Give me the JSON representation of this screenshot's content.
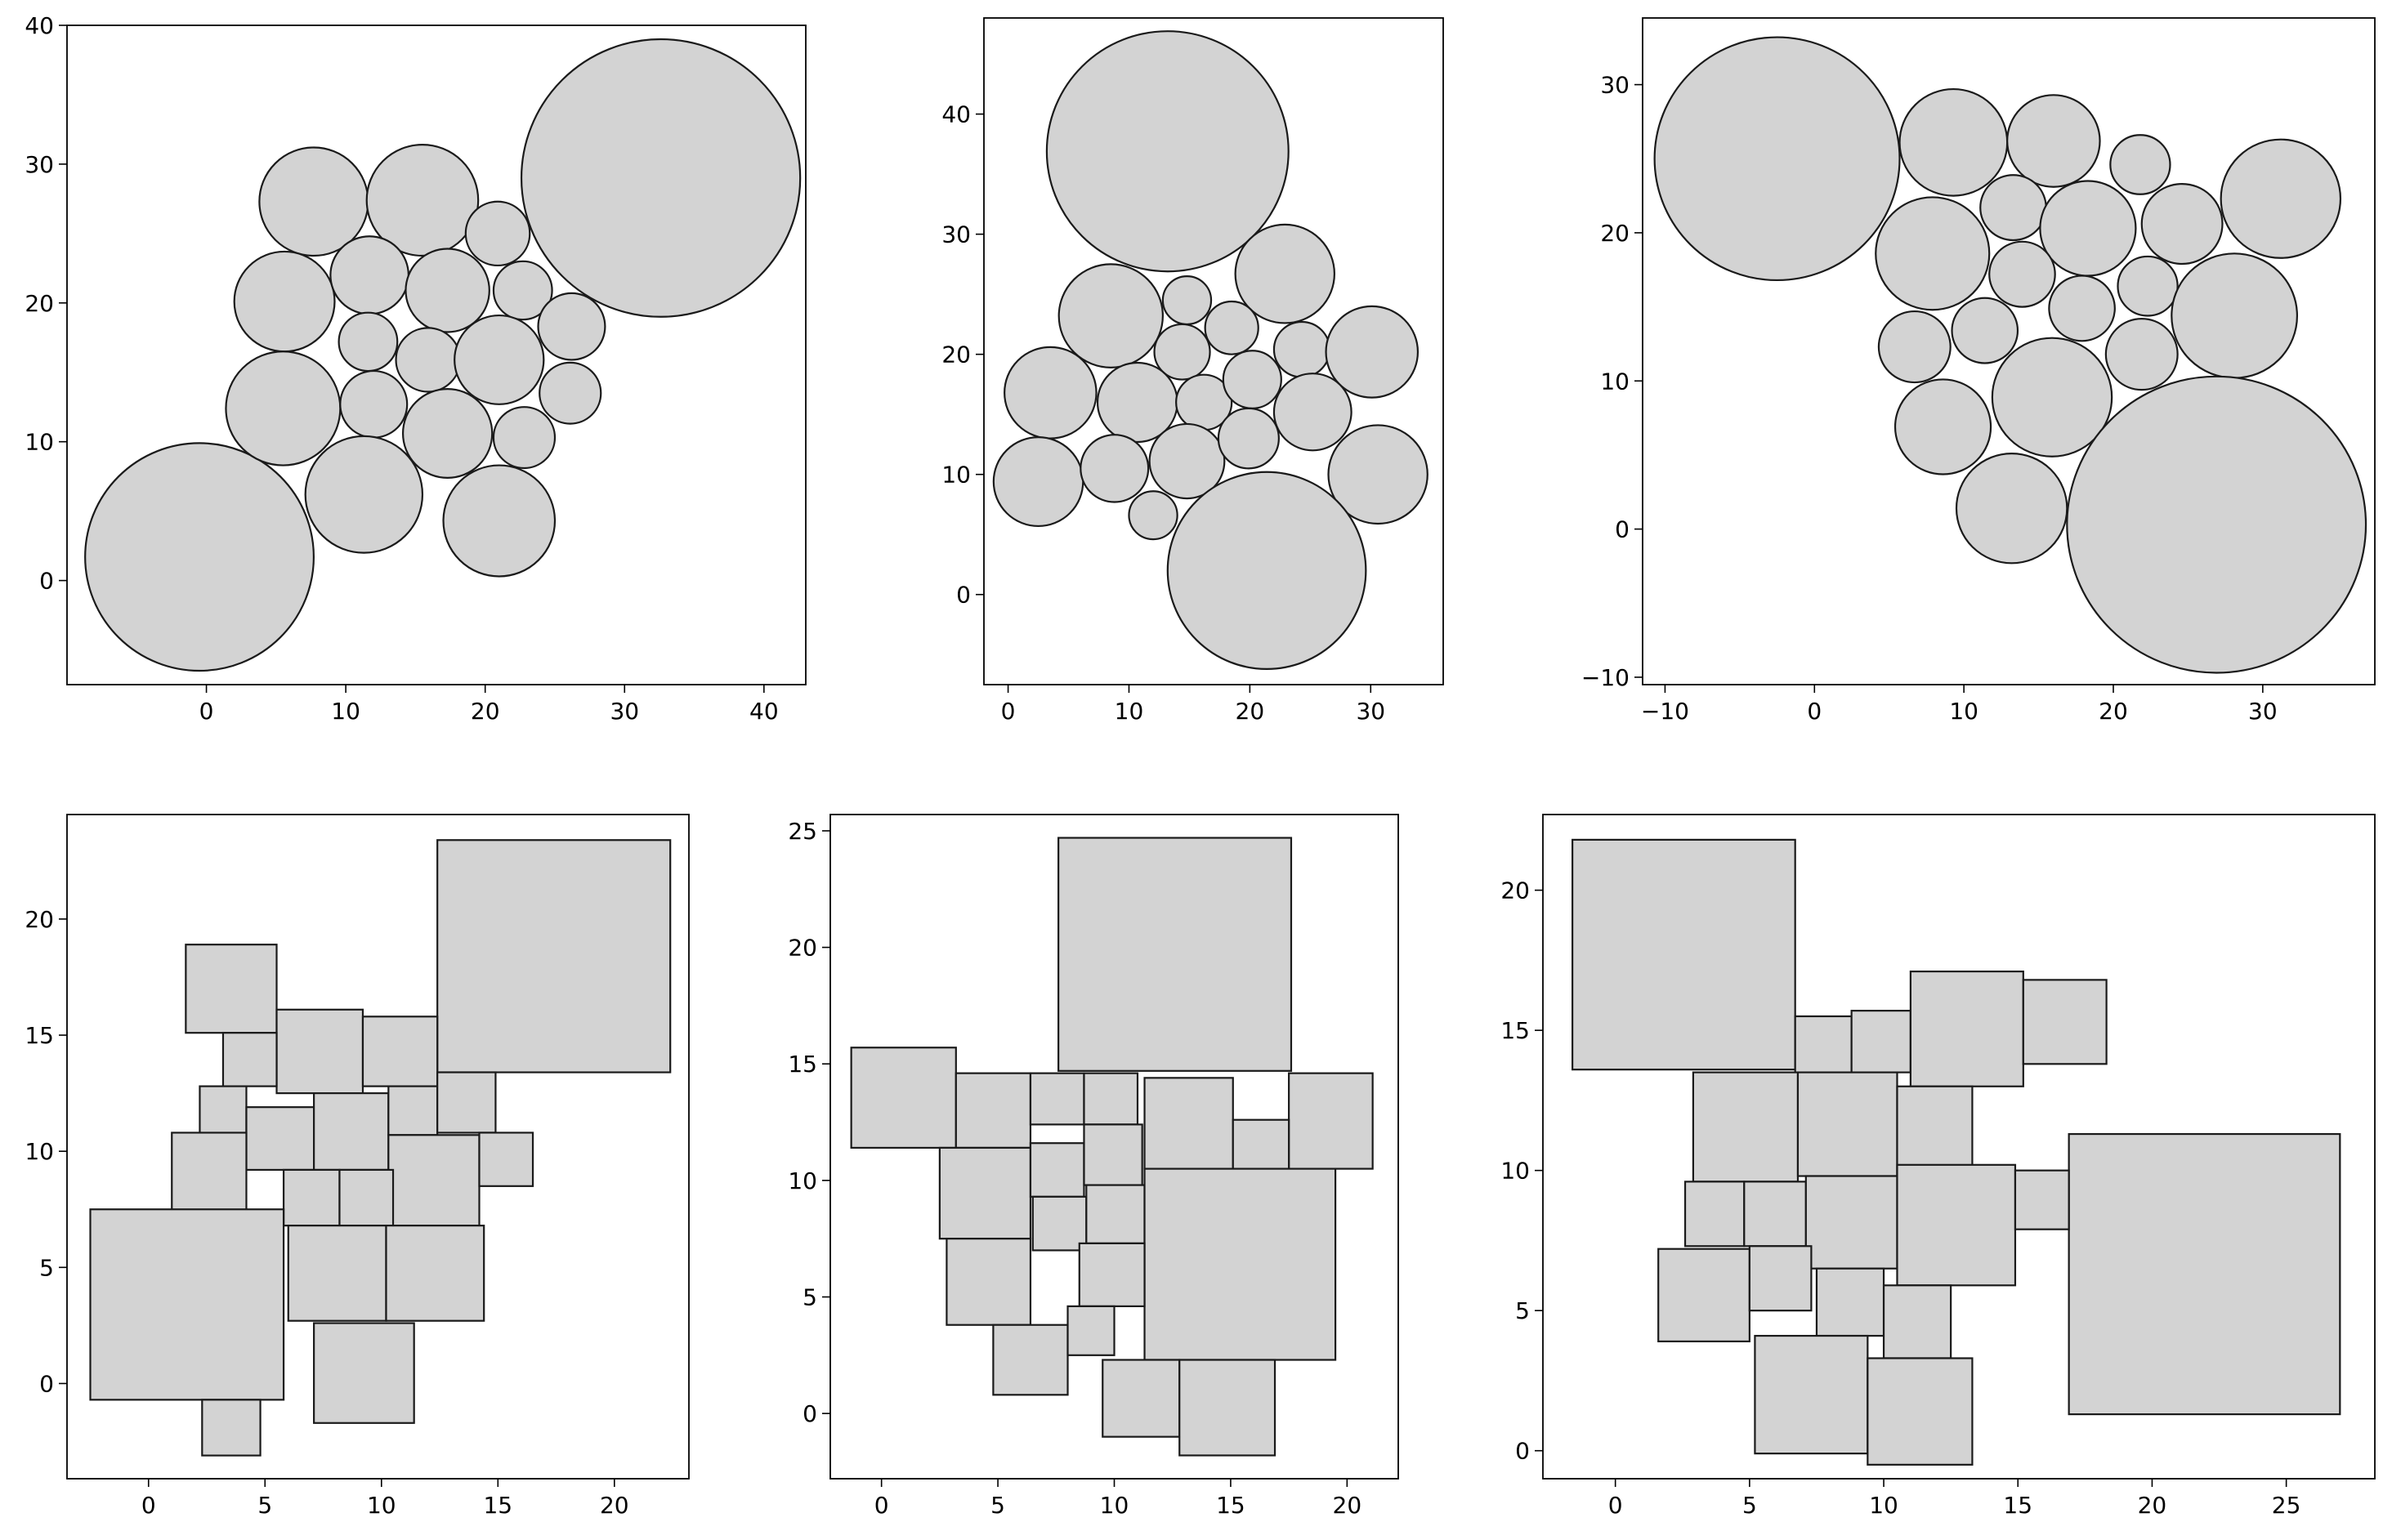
{
  "figure": {
    "background": "#ffffff",
    "shape_fill": "#d3d3d3",
    "shape_stroke": "#1a1a1a"
  },
  "chart_data": [
    {
      "type": "circle-packing",
      "xlim": [
        -10,
        43
      ],
      "ylim": [
        -7.5,
        40
      ],
      "xticks": [
        "0",
        "10",
        "20",
        "30",
        "40"
      ],
      "xtick_values": [
        0,
        10,
        20,
        30,
        40
      ],
      "yticks": [
        "0",
        "10",
        "20",
        "30",
        "40"
      ],
      "ytick_values": [
        0,
        10,
        20,
        30,
        40
      ],
      "grid": false,
      "circles": [
        {
          "x": -0.5,
          "y": 1.7,
          "r": 8.2
        },
        {
          "x": 32.6,
          "y": 29.0,
          "r": 10.0
        },
        {
          "x": 7.7,
          "y": 27.3,
          "r": 3.9
        },
        {
          "x": 15.5,
          "y": 27.4,
          "r": 4.0
        },
        {
          "x": 20.9,
          "y": 25.0,
          "r": 2.3
        },
        {
          "x": 5.6,
          "y": 20.1,
          "r": 3.6
        },
        {
          "x": 11.7,
          "y": 22.0,
          "r": 2.8
        },
        {
          "x": 17.3,
          "y": 20.9,
          "r": 3.0
        },
        {
          "x": 22.7,
          "y": 20.9,
          "r": 2.1
        },
        {
          "x": 26.2,
          "y": 18.3,
          "r": 2.4
        },
        {
          "x": 11.6,
          "y": 17.2,
          "r": 2.1
        },
        {
          "x": 15.9,
          "y": 15.9,
          "r": 2.3
        },
        {
          "x": 21.0,
          "y": 15.9,
          "r": 3.2
        },
        {
          "x": 5.5,
          "y": 12.4,
          "r": 4.1
        },
        {
          "x": 12.0,
          "y": 12.7,
          "r": 2.4
        },
        {
          "x": 26.1,
          "y": 13.5,
          "r": 2.2
        },
        {
          "x": 17.3,
          "y": 10.6,
          "r": 3.2
        },
        {
          "x": 22.8,
          "y": 10.3,
          "r": 2.2
        },
        {
          "x": 11.3,
          "y": 6.2,
          "r": 4.2
        },
        {
          "x": 21.0,
          "y": 4.3,
          "r": 4.0
        }
      ]
    },
    {
      "type": "circle-packing",
      "xlim": [
        -2,
        36
      ],
      "ylim": [
        -7.5,
        48
      ],
      "xticks": [
        "0",
        "10",
        "20",
        "30"
      ],
      "xtick_values": [
        0,
        10,
        20,
        30
      ],
      "yticks": [
        "0",
        "10",
        "20",
        "30",
        "40"
      ],
      "ytick_values": [
        0,
        10,
        20,
        30,
        40
      ],
      "grid": false,
      "circles": [
        {
          "x": 13.2,
          "y": 36.9,
          "r": 10.0
        },
        {
          "x": 22.9,
          "y": 26.7,
          "r": 4.1
        },
        {
          "x": 8.5,
          "y": 23.2,
          "r": 4.3
        },
        {
          "x": 14.8,
          "y": 24.5,
          "r": 2.0
        },
        {
          "x": 18.5,
          "y": 22.2,
          "r": 2.2
        },
        {
          "x": 14.4,
          "y": 20.2,
          "r": 2.3
        },
        {
          "x": 24.3,
          "y": 20.4,
          "r": 2.3
        },
        {
          "x": 30.1,
          "y": 20.2,
          "r": 3.8
        },
        {
          "x": 3.5,
          "y": 16.8,
          "r": 3.8
        },
        {
          "x": 10.7,
          "y": 16.0,
          "r": 3.3
        },
        {
          "x": 16.2,
          "y": 16.0,
          "r": 2.3
        },
        {
          "x": 20.2,
          "y": 17.9,
          "r": 2.4
        },
        {
          "x": 25.2,
          "y": 15.2,
          "r": 3.2
        },
        {
          "x": 2.5,
          "y": 9.4,
          "r": 3.7
        },
        {
          "x": 8.8,
          "y": 10.5,
          "r": 2.8
        },
        {
          "x": 14.8,
          "y": 11.1,
          "r": 3.1
        },
        {
          "x": 19.9,
          "y": 13.0,
          "r": 2.5
        },
        {
          "x": 30.6,
          "y": 10.0,
          "r": 4.1
        },
        {
          "x": 12.0,
          "y": 6.6,
          "r": 2.0
        },
        {
          "x": 21.4,
          "y": 2.0,
          "r": 8.2
        }
      ]
    },
    {
      "type": "circle-packing",
      "xlim": [
        -11.5,
        37.5
      ],
      "ylim": [
        -10.5,
        34.5
      ],
      "xticks": [
        "−10",
        "0",
        "10",
        "20",
        "30"
      ],
      "xtick_values": [
        -10,
        0,
        10,
        20,
        30
      ],
      "yticks": [
        "−10",
        "0",
        "10",
        "20",
        "30"
      ],
      "ytick_values": [
        -10,
        0,
        10,
        20,
        30
      ],
      "grid": false,
      "circles": [
        {
          "x": -2.5,
          "y": 25.0,
          "r": 8.2
        },
        {
          "x": 9.3,
          "y": 26.1,
          "r": 3.6
        },
        {
          "x": 16.0,
          "y": 26.2,
          "r": 3.1
        },
        {
          "x": 21.8,
          "y": 24.6,
          "r": 2.0
        },
        {
          "x": 31.2,
          "y": 22.3,
          "r": 4.0
        },
        {
          "x": 13.3,
          "y": 21.7,
          "r": 2.2
        },
        {
          "x": 18.3,
          "y": 20.3,
          "r": 3.2
        },
        {
          "x": 24.6,
          "y": 20.6,
          "r": 2.7
        },
        {
          "x": 7.9,
          "y": 18.6,
          "r": 3.8
        },
        {
          "x": 13.9,
          "y": 17.2,
          "r": 2.2
        },
        {
          "x": 22.3,
          "y": 16.4,
          "r": 2.0
        },
        {
          "x": 28.1,
          "y": 14.4,
          "r": 4.2
        },
        {
          "x": 11.4,
          "y": 13.4,
          "r": 2.2
        },
        {
          "x": 17.9,
          "y": 14.9,
          "r": 2.2
        },
        {
          "x": 6.7,
          "y": 12.3,
          "r": 2.4
        },
        {
          "x": 21.9,
          "y": 11.8,
          "r": 2.4
        },
        {
          "x": 15.9,
          "y": 8.9,
          "r": 4.0
        },
        {
          "x": 8.6,
          "y": 6.9,
          "r": 3.2
        },
        {
          "x": 13.2,
          "y": 1.4,
          "r": 3.7
        },
        {
          "x": 26.9,
          "y": 0.3,
          "r": 10.0
        }
      ]
    },
    {
      "type": "rectangle-packing",
      "xlim": [
        -3.5,
        23.2
      ],
      "ylim": [
        -4.1,
        24.5
      ],
      "xticks": [
        "0",
        "5",
        "10",
        "15",
        "20"
      ],
      "xtick_values": [
        0,
        5,
        10,
        15,
        20
      ],
      "yticks": [
        "0",
        "5",
        "10",
        "15",
        "20"
      ],
      "ytick_values": [
        0,
        5,
        10,
        15,
        20
      ],
      "grid": false,
      "rects": [
        {
          "x0": 12.4,
          "y0": 13.4,
          "x1": 22.4,
          "y1": 23.4
        },
        {
          "x0": 1.6,
          "y0": 15.1,
          "x1": 5.5,
          "y1": 18.9
        },
        {
          "x0": 5.5,
          "y0": 12.5,
          "x1": 9.2,
          "y1": 16.1
        },
        {
          "x0": 9.2,
          "y0": 12.8,
          "x1": 12.4,
          "y1": 15.8
        },
        {
          "x0": 3.2,
          "y0": 12.8,
          "x1": 5.5,
          "y1": 15.1
        },
        {
          "x0": 2.2,
          "y0": 10.7,
          "x1": 4.2,
          "y1": 12.8
        },
        {
          "x0": 4.2,
          "y0": 9.2,
          "x1": 7.1,
          "y1": 11.9
        },
        {
          "x0": 7.1,
          "y0": 9.2,
          "x1": 10.3,
          "y1": 12.5
        },
        {
          "x0": 10.3,
          "y0": 10.7,
          "x1": 12.4,
          "y1": 12.8
        },
        {
          "x0": 12.4,
          "y0": 10.8,
          "x1": 14.9,
          "y1": 13.4
        },
        {
          "x0": 1.0,
          "y0": 7.4,
          "x1": 4.2,
          "y1": 10.8
        },
        {
          "x0": 10.3,
          "y0": 6.8,
          "x1": 14.2,
          "y1": 10.7
        },
        {
          "x0": 14.2,
          "y0": 8.5,
          "x1": 16.5,
          "y1": 10.8
        },
        {
          "x0": 5.8,
          "y0": 6.8,
          "x1": 8.2,
          "y1": 9.2
        },
        {
          "x0": 8.2,
          "y0": 6.8,
          "x1": 10.5,
          "y1": 9.2
        },
        {
          "x0": -2.5,
          "y0": -0.7,
          "x1": 5.8,
          "y1": 7.5
        },
        {
          "x0": 6.0,
          "y0": 2.7,
          "x1": 10.2,
          "y1": 6.8
        },
        {
          "x0": 10.2,
          "y0": 2.7,
          "x1": 14.4,
          "y1": 6.8
        },
        {
          "x0": 7.1,
          "y0": -1.7,
          "x1": 11.4,
          "y1": 2.6
        },
        {
          "x0": 2.3,
          "y0": -3.1,
          "x1": 4.8,
          "y1": -0.7
        }
      ]
    },
    {
      "type": "rectangle-packing",
      "xlim": [
        -2.2,
        22.2
      ],
      "ylim": [
        -2.8,
        25.7
      ],
      "xticks": [
        "0",
        "5",
        "10",
        "15",
        "20"
      ],
      "xtick_values": [
        0,
        5,
        10,
        15,
        20
      ],
      "yticks": [
        "0",
        "5",
        "10",
        "15",
        "20",
        "25"
      ],
      "ytick_values": [
        0,
        5,
        10,
        15,
        20,
        25
      ],
      "grid": false,
      "rects": [
        {
          "x0": 7.6,
          "y0": 14.7,
          "x1": 17.6,
          "y1": 24.7
        },
        {
          "x0": -1.3,
          "y0": 11.4,
          "x1": 3.2,
          "y1": 15.7
        },
        {
          "x0": 3.2,
          "y0": 11.4,
          "x1": 6.4,
          "y1": 14.6
        },
        {
          "x0": 6.4,
          "y0": 12.4,
          "x1": 8.7,
          "y1": 14.6
        },
        {
          "x0": 8.7,
          "y0": 12.4,
          "x1": 11.0,
          "y1": 14.6
        },
        {
          "x0": 11.3,
          "y0": 10.5,
          "x1": 15.1,
          "y1": 14.4
        },
        {
          "x0": 17.5,
          "y0": 10.5,
          "x1": 21.1,
          "y1": 14.6
        },
        {
          "x0": 15.1,
          "y0": 10.5,
          "x1": 17.5,
          "y1": 12.6
        },
        {
          "x0": 2.5,
          "y0": 7.5,
          "x1": 6.4,
          "y1": 11.4
        },
        {
          "x0": 6.4,
          "y0": 9.3,
          "x1": 8.7,
          "y1": 11.6
        },
        {
          "x0": 8.7,
          "y0": 9.8,
          "x1": 11.2,
          "y1": 12.4
        },
        {
          "x0": 6.5,
          "y0": 7.0,
          "x1": 8.8,
          "y1": 9.3
        },
        {
          "x0": 8.8,
          "y0": 7.3,
          "x1": 11.3,
          "y1": 9.8
        },
        {
          "x0": 11.3,
          "y0": 2.3,
          "x1": 19.5,
          "y1": 10.5
        },
        {
          "x0": 2.8,
          "y0": 3.8,
          "x1": 6.4,
          "y1": 7.5
        },
        {
          "x0": 8.5,
          "y0": 4.6,
          "x1": 11.3,
          "y1": 7.3
        },
        {
          "x0": 4.8,
          "y0": 0.8,
          "x1": 8.0,
          "y1": 3.8
        },
        {
          "x0": 8.0,
          "y0": 2.5,
          "x1": 10.0,
          "y1": 4.6
        },
        {
          "x0": 9.5,
          "y0": -1.0,
          "x1": 12.8,
          "y1": 2.3
        },
        {
          "x0": 12.8,
          "y0": -1.8,
          "x1": 16.9,
          "y1": 2.3
        }
      ]
    },
    {
      "type": "rectangle-packing",
      "xlim": [
        -2.7,
        28.3
      ],
      "ylim": [
        -1.0,
        22.7
      ],
      "xticks": [
        "0",
        "5",
        "10",
        "15",
        "20",
        "25"
      ],
      "xtick_values": [
        0,
        5,
        10,
        15,
        20,
        25
      ],
      "yticks": [
        "0",
        "5",
        "10",
        "15",
        "20"
      ],
      "ytick_values": [
        0,
        5,
        10,
        15,
        20
      ],
      "grid": false,
      "rects": [
        {
          "x0": -1.6,
          "y0": 13.6,
          "x1": 6.7,
          "y1": 21.8
        },
        {
          "x0": 6.7,
          "y0": 13.5,
          "x1": 8.8,
          "y1": 15.5
        },
        {
          "x0": 8.8,
          "y0": 13.5,
          "x1": 11.0,
          "y1": 15.7
        },
        {
          "x0": 11.0,
          "y0": 13.0,
          "x1": 15.2,
          "y1": 17.1
        },
        {
          "x0": 15.2,
          "y0": 13.8,
          "x1": 18.3,
          "y1": 16.8
        },
        {
          "x0": 2.9,
          "y0": 9.6,
          "x1": 6.8,
          "y1": 13.5
        },
        {
          "x0": 6.8,
          "y0": 9.8,
          "x1": 10.5,
          "y1": 13.5
        },
        {
          "x0": 10.5,
          "y0": 9.6,
          "x1": 13.3,
          "y1": 13.0
        },
        {
          "x0": 16.9,
          "y0": 1.3,
          "x1": 27.0,
          "y1": 11.3
        },
        {
          "x0": 2.6,
          "y0": 7.3,
          "x1": 4.8,
          "y1": 9.6
        },
        {
          "x0": 4.8,
          "y0": 7.3,
          "x1": 7.1,
          "y1": 9.6
        },
        {
          "x0": 7.1,
          "y0": 6.5,
          "x1": 10.5,
          "y1": 9.8
        },
        {
          "x0": 10.5,
          "y0": 5.9,
          "x1": 14.9,
          "y1": 10.2
        },
        {
          "x0": 14.9,
          "y0": 7.9,
          "x1": 16.9,
          "y1": 10.0
        },
        {
          "x0": 1.6,
          "y0": 3.9,
          "x1": 5.0,
          "y1": 7.2
        },
        {
          "x0": 5.0,
          "y0": 5.0,
          "x1": 7.3,
          "y1": 7.3
        },
        {
          "x0": 7.5,
          "y0": 4.1,
          "x1": 10.0,
          "y1": 6.5
        },
        {
          "x0": 10.0,
          "y0": 3.3,
          "x1": 12.5,
          "y1": 5.9
        },
        {
          "x0": 5.2,
          "y0": -0.1,
          "x1": 9.4,
          "y1": 4.1
        },
        {
          "x0": 9.4,
          "y0": -0.5,
          "x1": 13.3,
          "y1": 3.3
        }
      ]
    }
  ]
}
